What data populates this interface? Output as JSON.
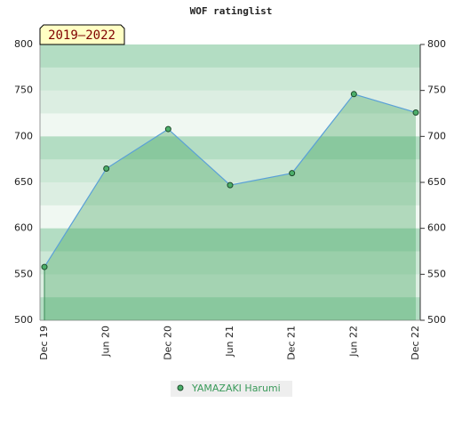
{
  "chart_data": {
    "type": "area",
    "title": "WOF ratinglist",
    "annotation": "2019–2022",
    "categories": [
      "Dec 19",
      "Jun 20",
      "Dec 20",
      "Jun 21",
      "Dec 21",
      "Jun 22",
      "Dec 22"
    ],
    "series": [
      {
        "name": "YAMAZAKI Harumi",
        "color": "#5aa0d8",
        "values": [
          558,
          665,
          708,
          647,
          660,
          746,
          726
        ]
      }
    ],
    "ylim": [
      500,
      800
    ],
    "yticks": [
      500,
      550,
      600,
      650,
      700,
      750,
      800
    ]
  }
}
